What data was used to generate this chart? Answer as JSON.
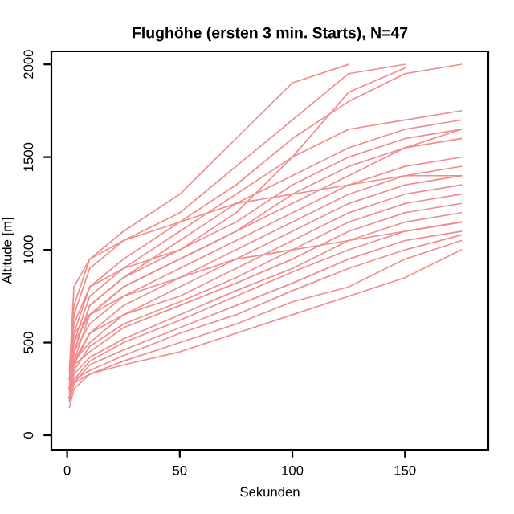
{
  "chart_data": {
    "type": "line",
    "title": "Flughöhe (ersten 3 min. Starts), N=47",
    "xlabel": "Sekunden",
    "ylabel": "Altitude [m]",
    "x": [
      1,
      3,
      10,
      25,
      50,
      75,
      100,
      125,
      150,
      175
    ],
    "series": [
      {
        "color": "#f28c8c",
        "values": [
          250,
          700,
          950,
          1100,
          1300,
          1600,
          1900,
          2000,
          null,
          null
        ]
      },
      {
        "color": "#f28c8c",
        "values": [
          300,
          650,
          900,
          1050,
          1200,
          1450,
          1700,
          1950,
          2000,
          null
        ]
      },
      {
        "color": "#f28c8c",
        "values": [
          200,
          550,
          800,
          950,
          1150,
          1350,
          1600,
          1800,
          1950,
          2000
        ]
      },
      {
        "color": "#f28c8c",
        "values": [
          250,
          500,
          750,
          900,
          1100,
          1300,
          1500,
          1650,
          1700,
          1750
        ]
      },
      {
        "color": "#f28c8c",
        "values": [
          200,
          450,
          700,
          850,
          1050,
          1250,
          1400,
          1550,
          1650,
          1700
        ]
      },
      {
        "color": "#f28c8c",
        "values": [
          300,
          600,
          800,
          900,
          1000,
          1150,
          1350,
          1500,
          1600,
          1650
        ]
      },
      {
        "color": "#f28c8c",
        "values": [
          200,
          400,
          650,
          800,
          950,
          1100,
          1300,
          1450,
          1550,
          1600
        ]
      },
      {
        "color": "#f28c8c",
        "values": [
          250,
          450,
          600,
          750,
          900,
          1050,
          1200,
          1350,
          1450,
          1500
        ]
      },
      {
        "color": "#f28c8c",
        "values": [
          200,
          400,
          550,
          700,
          850,
          1000,
          1150,
          1300,
          1400,
          1450
        ]
      },
      {
        "color": "#f28c8c",
        "values": [
          200,
          380,
          550,
          650,
          800,
          950,
          1100,
          1250,
          1350,
          1400
        ]
      },
      {
        "color": "#f28c8c",
        "values": [
          250,
          400,
          500,
          650,
          750,
          900,
          1050,
          1200,
          1300,
          1350
        ]
      },
      {
        "color": "#f28c8c",
        "values": [
          200,
          350,
          480,
          600,
          720,
          850,
          1000,
          1150,
          1250,
          1300
        ]
      },
      {
        "color": "#f28c8c",
        "values": [
          200,
          380,
          450,
          580,
          700,
          820,
          950,
          1100,
          1200,
          1250
        ]
      },
      {
        "color": "#f28c8c",
        "values": [
          180,
          330,
          420,
          520,
          650,
          780,
          900,
          1050,
          1150,
          1200
        ]
      },
      {
        "color": "#f28c8c",
        "values": [
          200,
          300,
          400,
          500,
          620,
          750,
          880,
          1000,
          1100,
          1150
        ]
      },
      {
        "color": "#f28c8c",
        "values": [
          180,
          280,
          380,
          460,
          580,
          700,
          820,
          950,
          1050,
          1100
        ]
      },
      {
        "color": "#f28c8c",
        "values": [
          200,
          300,
          350,
          430,
          550,
          650,
          780,
          900,
          1000,
          1080
        ]
      },
      {
        "color": "#f28c8c",
        "values": [
          150,
          250,
          330,
          400,
          500,
          600,
          720,
          800,
          950,
          1050
        ]
      },
      {
        "color": "#f28c8c",
        "values": [
          200,
          280,
          330,
          380,
          450,
          550,
          650,
          750,
          850,
          1000
        ]
      },
      {
        "color": "#f28c8c",
        "values": [
          230,
          450,
          700,
          850,
          1000,
          1200,
          1500,
          1850,
          1980,
          null
        ]
      },
      {
        "color": "#f28c8c",
        "values": [
          250,
          500,
          650,
          800,
          950,
          1100,
          1250,
          1400,
          1550,
          1650
        ]
      },
      {
        "color": "#f28c8c",
        "values": [
          350,
          800,
          950,
          1050,
          1150,
          1250,
          1300,
          1350,
          1400,
          1400
        ]
      },
      {
        "color": "#f28c8c",
        "values": [
          300,
          550,
          650,
          750,
          850,
          950,
          1000,
          1050,
          1100,
          1150
        ]
      }
    ],
    "xlim": [
      -7,
      187
    ],
    "ylim": [
      -78,
      2070
    ],
    "xticks": [
      0,
      50,
      100,
      150
    ],
    "yticks": [
      0,
      500,
      1000,
      1500,
      2000
    ],
    "grid": false,
    "legend": false,
    "line_style": "solid",
    "marker": "none"
  }
}
